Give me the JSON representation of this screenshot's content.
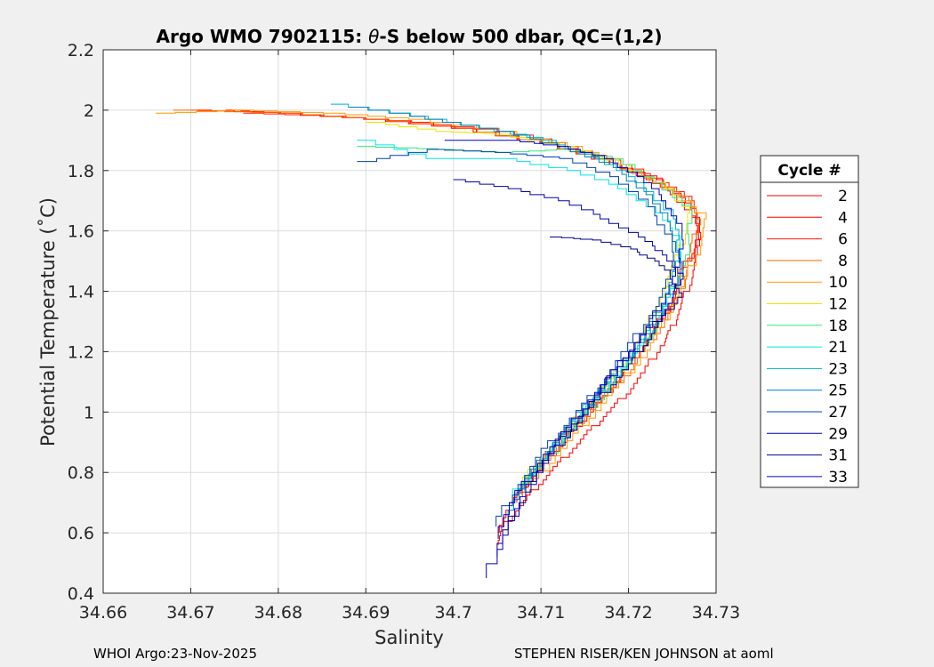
{
  "footer": {
    "left": "WHOI Argo:23-Nov-2025",
    "right": "STEPHEN RISER/KEN JOHNSON at aoml"
  },
  "chart_data": {
    "type": "line",
    "title_prefix": "Argo WMO 7902115: ",
    "title_theta": "θ",
    "title_suffix": "-S below 500 dbar,  QC=(1,2)",
    "xlabel": "Salinity",
    "ylabel": "Potential Temperature (˚C)",
    "xlim": [
      34.66,
      34.73
    ],
    "ylim": [
      0.4,
      2.2
    ],
    "xticks": [
      "34.66",
      "34.67",
      "34.68",
      "34.69",
      "34.7",
      "34.71",
      "34.72",
      "34.73"
    ],
    "yticks": [
      "0.4",
      "0.6",
      "0.8",
      "1",
      "1.2",
      "1.4",
      "1.6",
      "1.8",
      "2",
      "2.2"
    ],
    "grid": true,
    "legend": {
      "title": "Cycle #",
      "placement": "outside-right"
    },
    "series": [
      {
        "name": "2",
        "color": "#ff0000",
        "x": [
          34.674,
          34.68,
          34.69,
          34.7,
          34.71,
          34.718,
          34.722,
          34.725,
          34.728,
          34.728,
          34.727,
          34.726,
          34.725,
          34.724,
          34.722,
          34.72,
          34.718,
          34.716,
          34.714,
          34.712,
          34.71,
          34.708,
          34.706,
          34.705
        ],
        "y": [
          2.0,
          1.99,
          1.97,
          1.94,
          1.89,
          1.82,
          1.77,
          1.72,
          1.62,
          1.52,
          1.42,
          1.34,
          1.27,
          1.22,
          1.13,
          1.06,
          1.0,
          0.94,
          0.88,
          0.82,
          0.76,
          0.69,
          0.62,
          0.56
        ]
      },
      {
        "name": "4",
        "color": "#ff0000",
        "x": [
          34.67,
          34.68,
          34.69,
          34.7,
          34.71,
          34.718,
          34.723,
          34.726,
          34.728,
          34.728,
          34.726,
          34.725,
          34.723,
          34.721,
          34.719,
          34.717,
          34.715,
          34.713,
          34.711,
          34.709,
          34.707,
          34.705
        ],
        "y": [
          2.0,
          1.99,
          1.97,
          1.94,
          1.89,
          1.82,
          1.77,
          1.71,
          1.64,
          1.55,
          1.45,
          1.35,
          1.26,
          1.18,
          1.1,
          1.03,
          0.97,
          0.9,
          0.84,
          0.77,
          0.7,
          0.6
        ]
      },
      {
        "name": "6",
        "color": "#ff1a00",
        "x": [
          34.676,
          34.685,
          34.695,
          34.705,
          34.713,
          34.719,
          34.724,
          34.727,
          34.728,
          34.727,
          34.725,
          34.723,
          34.721,
          34.719,
          34.716,
          34.713,
          34.71,
          34.707
        ],
        "y": [
          1.99,
          1.98,
          1.96,
          1.93,
          1.88,
          1.82,
          1.76,
          1.7,
          1.6,
          1.48,
          1.36,
          1.26,
          1.18,
          1.1,
          1.01,
          0.92,
          0.82,
          0.7
        ]
      },
      {
        "name": "8",
        "color": "#ff6600",
        "x": [
          34.668,
          34.68,
          34.69,
          34.7,
          34.71,
          34.718,
          34.723,
          34.727,
          34.728,
          34.727,
          34.726,
          34.724,
          34.722,
          34.72,
          34.717,
          34.714,
          34.711,
          34.708
        ],
        "y": [
          2.0,
          1.99,
          1.97,
          1.94,
          1.89,
          1.82,
          1.76,
          1.7,
          1.62,
          1.5,
          1.38,
          1.28,
          1.2,
          1.12,
          1.03,
          0.94,
          0.84,
          0.72
        ]
      },
      {
        "name": "10",
        "color": "#ff9900",
        "x": [
          34.666,
          34.675,
          34.685,
          34.695,
          34.705,
          34.713,
          34.72,
          34.725,
          34.729,
          34.728,
          34.726,
          34.724,
          34.722,
          34.719,
          34.716,
          34.713,
          34.71
        ],
        "y": [
          1.99,
          2.0,
          1.99,
          1.97,
          1.93,
          1.88,
          1.8,
          1.72,
          1.64,
          1.52,
          1.38,
          1.28,
          1.18,
          1.08,
          0.98,
          0.88,
          0.78
        ]
      },
      {
        "name": "12",
        "color": "#e6e600",
        "x": [
          34.69,
          34.698,
          34.705,
          34.712,
          34.719,
          34.724,
          34.727,
          34.726,
          34.724,
          34.722,
          34.72,
          34.717,
          34.714,
          34.711,
          34.708
        ],
        "y": [
          1.96,
          1.93,
          1.92,
          1.88,
          1.82,
          1.74,
          1.66,
          1.52,
          1.38,
          1.26,
          1.16,
          1.06,
          0.96,
          0.86,
          0.76
        ]
      },
      {
        "name": "18",
        "color": "#33e680",
        "x": [
          34.689,
          34.698,
          34.705,
          34.712,
          34.718,
          34.723,
          34.727,
          34.727,
          34.725,
          34.723,
          34.72,
          34.717,
          34.714,
          34.711,
          34.708
        ],
        "y": [
          1.88,
          1.87,
          1.86,
          1.87,
          1.84,
          1.76,
          1.66,
          1.52,
          1.38,
          1.26,
          1.14,
          1.04,
          0.94,
          0.84,
          0.74
        ]
      },
      {
        "name": "21",
        "color": "#00e6e6",
        "x": [
          34.689,
          34.697,
          34.705,
          34.713,
          34.719,
          34.723,
          34.726,
          34.726,
          34.724,
          34.722,
          34.719,
          34.716,
          34.713,
          34.71,
          34.707
        ],
        "y": [
          1.9,
          1.84,
          1.84,
          1.8,
          1.74,
          1.66,
          1.56,
          1.44,
          1.32,
          1.22,
          1.12,
          1.02,
          0.92,
          0.82,
          0.72
        ]
      },
      {
        "name": "23",
        "color": "#00b3cc",
        "x": [
          34.686,
          34.695,
          34.703,
          34.71,
          34.716,
          34.721,
          34.725,
          34.726,
          34.724,
          34.722,
          34.719,
          34.716,
          34.713,
          34.71,
          34.707
        ],
        "y": [
          2.02,
          1.98,
          1.94,
          1.9,
          1.84,
          1.76,
          1.64,
          1.5,
          1.36,
          1.24,
          1.12,
          1.02,
          0.92,
          0.82,
          0.7
        ]
      },
      {
        "name": "25",
        "color": "#0080c0",
        "x": [
          34.688,
          34.697,
          34.705,
          34.712,
          34.718,
          34.722,
          34.725,
          34.726,
          34.724,
          34.721,
          34.718,
          34.715,
          34.712,
          34.709,
          34.706
        ],
        "y": [
          2.01,
          1.97,
          1.93,
          1.88,
          1.81,
          1.72,
          1.6,
          1.46,
          1.32,
          1.2,
          1.1,
          1.0,
          0.9,
          0.78,
          0.64
        ]
      },
      {
        "name": "27",
        "color": "#0040b0",
        "x": [
          34.689,
          34.697,
          34.705,
          34.712,
          34.718,
          34.722,
          34.725,
          34.725,
          34.723,
          34.72,
          34.717,
          34.714,
          34.711,
          34.708,
          34.705
        ],
        "y": [
          1.83,
          1.87,
          1.86,
          1.84,
          1.78,
          1.68,
          1.56,
          1.44,
          1.32,
          1.2,
          1.08,
          0.98,
          0.88,
          0.76,
          0.62
        ]
      },
      {
        "name": "29",
        "color": "#0000b0",
        "x": [
          34.7,
          34.706,
          34.712,
          34.717,
          34.721,
          34.724,
          34.726,
          34.725,
          34.723,
          34.72,
          34.717,
          34.714,
          34.711,
          34.708,
          34.705
        ],
        "y": [
          1.77,
          1.74,
          1.7,
          1.64,
          1.58,
          1.52,
          1.44,
          1.36,
          1.28,
          1.18,
          1.06,
          0.96,
          0.86,
          0.74,
          0.58
        ]
      },
      {
        "name": "31",
        "color": "#000090",
        "x": [
          34.711,
          34.716,
          34.72,
          34.723,
          34.725,
          34.726,
          34.724,
          34.722,
          34.72,
          34.717,
          34.714,
          34.711,
          34.708,
          34.705
        ],
        "y": [
          1.58,
          1.57,
          1.54,
          1.5,
          1.44,
          1.38,
          1.3,
          1.22,
          1.14,
          1.04,
          0.94,
          0.84,
          0.7,
          0.52
        ]
      },
      {
        "name": "33",
        "color": "#0000cc",
        "x": [
          34.699,
          34.706,
          34.712,
          34.717,
          34.721,
          34.724,
          34.726,
          34.726,
          34.724,
          34.722,
          34.719,
          34.716,
          34.713,
          34.71,
          34.707,
          34.704
        ],
        "y": [
          1.9,
          1.9,
          1.88,
          1.84,
          1.78,
          1.7,
          1.6,
          1.48,
          1.36,
          1.26,
          1.14,
          1.04,
          0.92,
          0.8,
          0.64,
          0.45
        ]
      }
    ]
  }
}
